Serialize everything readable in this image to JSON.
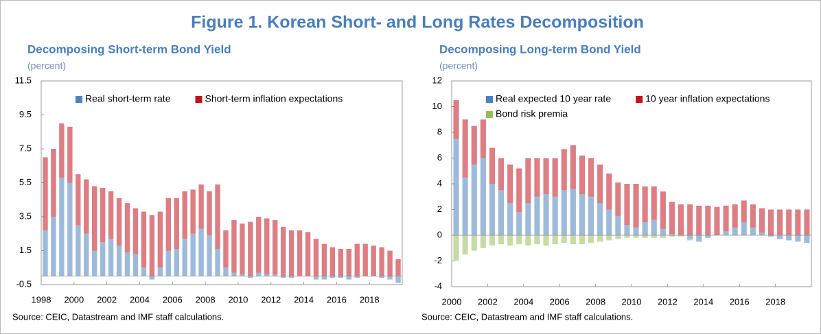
{
  "figure_title": "Figure 1. Korean Short- and Long Rates Decomposition",
  "chart_data": [
    {
      "type": "bar",
      "stacked": true,
      "title": "Decomposing Short-term Bond Yield",
      "subtitle": "(percent)",
      "source": "Source: CEIC, Datastream and IMF staff calculations.",
      "legend": "upper left",
      "xlim": [
        1998,
        2020
      ],
      "xticks": [
        1998,
        2000,
        2002,
        2004,
        2006,
        2008,
        2010,
        2012,
        2014,
        2016,
        2018
      ],
      "ylim": [
        -0.5,
        11.5
      ],
      "yticks": [
        -0.5,
        1.5,
        3.5,
        5.5,
        7.5,
        9.5,
        11.5
      ],
      "x": [
        1998,
        1998.5,
        1999,
        1999.5,
        2000,
        2000.5,
        2001,
        2001.5,
        2002,
        2002.5,
        2003,
        2003.5,
        2004,
        2004.5,
        2005,
        2005.5,
        2006,
        2006.5,
        2007,
        2007.5,
        2008,
        2008.5,
        2009,
        2009.5,
        2010,
        2010.5,
        2011,
        2011.5,
        2012,
        2012.5,
        2013,
        2013.5,
        2014,
        2014.5,
        2015,
        2015.5,
        2016,
        2016.5,
        2017,
        2017.5,
        2018,
        2018.5,
        2019,
        2019.5
      ],
      "series": [
        {
          "name": "Real short-term rate",
          "color": "#4f81bd",
          "values": [
            2.7,
            3.5,
            5.8,
            5.5,
            3.0,
            2.5,
            1.5,
            2.0,
            2.2,
            1.8,
            1.4,
            1.3,
            0.5,
            -0.2,
            0.5,
            1.5,
            1.6,
            2.2,
            2.5,
            2.8,
            2.4,
            1.6,
            0.5,
            0.2,
            0.1,
            -0.1,
            0.2,
            0.1,
            0.1,
            -0.1,
            -0.1,
            0.0,
            0.0,
            -0.2,
            -0.2,
            -0.1,
            -0.1,
            -0.2,
            -0.1,
            0.0,
            0.0,
            -0.1,
            -0.2,
            -0.4
          ]
        },
        {
          "name": "Short-term inflation expectations",
          "color": "#c0141e",
          "values": [
            4.3,
            4.0,
            3.2,
            3.3,
            3.0,
            3.2,
            3.8,
            3.2,
            2.8,
            2.8,
            2.9,
            2.7,
            3.3,
            3.6,
            3.3,
            3.1,
            3.0,
            2.8,
            2.6,
            2.6,
            2.6,
            3.8,
            2.2,
            3.1,
            3.0,
            3.2,
            3.3,
            3.3,
            3.2,
            2.9,
            2.7,
            2.7,
            2.6,
            2.2,
            1.9,
            1.7,
            1.6,
            1.6,
            1.9,
            1.9,
            1.8,
            1.7,
            1.5,
            1.0
          ]
        }
      ]
    },
    {
      "type": "bar",
      "stacked": true,
      "title": "Decomposing Long-term Bond Yield",
      "subtitle": "(percent)",
      "source": "Source: CEIC, Datastream and IMF staff calculations.",
      "legend": "upper left",
      "xlim": [
        2000,
        2020
      ],
      "xticks": [
        2000,
        2002,
        2004,
        2006,
        2008,
        2010,
        2012,
        2014,
        2016,
        2018
      ],
      "ylim": [
        -4,
        12
      ],
      "yticks": [
        -4,
        -2,
        0,
        2,
        4,
        6,
        8,
        10,
        12
      ],
      "x": [
        2000,
        2000.5,
        2001,
        2001.5,
        2002,
        2002.5,
        2003,
        2003.5,
        2004,
        2004.5,
        2005,
        2005.5,
        2006,
        2006.5,
        2007,
        2007.5,
        2008,
        2008.5,
        2009,
        2009.5,
        2010,
        2010.5,
        2011,
        2011.5,
        2012,
        2012.5,
        2013,
        2013.5,
        2014,
        2014.5,
        2015,
        2015.5,
        2016,
        2016.5,
        2017,
        2017.5,
        2018,
        2018.5,
        2019,
        2019.5
      ],
      "series": [
        {
          "name": "Real expected 10 year rate",
          "color": "#4f81bd",
          "values": [
            7.5,
            4.5,
            5.5,
            6.0,
            4.0,
            3.5,
            2.5,
            1.8,
            2.5,
            3.0,
            3.2,
            3.0,
            3.5,
            3.6,
            3.2,
            3.0,
            2.5,
            2.0,
            1.5,
            0.8,
            0.6,
            1.0,
            1.2,
            0.5,
            0.1,
            0.0,
            -0.3,
            -0.5,
            -0.2,
            0.0,
            0.3,
            0.6,
            1.0,
            0.6,
            0.2,
            -0.1,
            -0.3,
            -0.4,
            -0.5,
            -0.6
          ]
        },
        {
          "name": "10 year inflation expectations",
          "color": "#c0141e",
          "values": [
            3.0,
            4.5,
            3.0,
            3.0,
            2.8,
            2.5,
            3.0,
            3.4,
            3.5,
            3.0,
            2.8,
            3.0,
            3.2,
            3.4,
            3.0,
            3.0,
            3.0,
            2.8,
            2.6,
            3.2,
            3.4,
            2.8,
            2.6,
            2.9,
            2.5,
            2.4,
            2.4,
            2.3,
            2.3,
            2.2,
            2.0,
            1.8,
            1.7,
            1.8,
            1.9,
            2.0,
            2.0,
            2.0,
            2.0,
            2.0
          ]
        },
        {
          "name": "Bond risk premia",
          "color": "#9bbb59",
          "values": [
            -2.0,
            -1.5,
            -1.2,
            -1.0,
            -0.8,
            -0.7,
            -0.8,
            -0.7,
            -0.8,
            -0.7,
            -0.8,
            -0.7,
            -0.6,
            -0.7,
            -0.7,
            -0.6,
            -0.5,
            -0.4,
            -0.3,
            -0.2,
            -0.2,
            -0.2,
            -0.2,
            -0.2,
            -0.1,
            -0.1,
            -0.1,
            0,
            0,
            0,
            0,
            0,
            0,
            0,
            0,
            0,
            0,
            0,
            0,
            0
          ]
        }
      ]
    }
  ]
}
